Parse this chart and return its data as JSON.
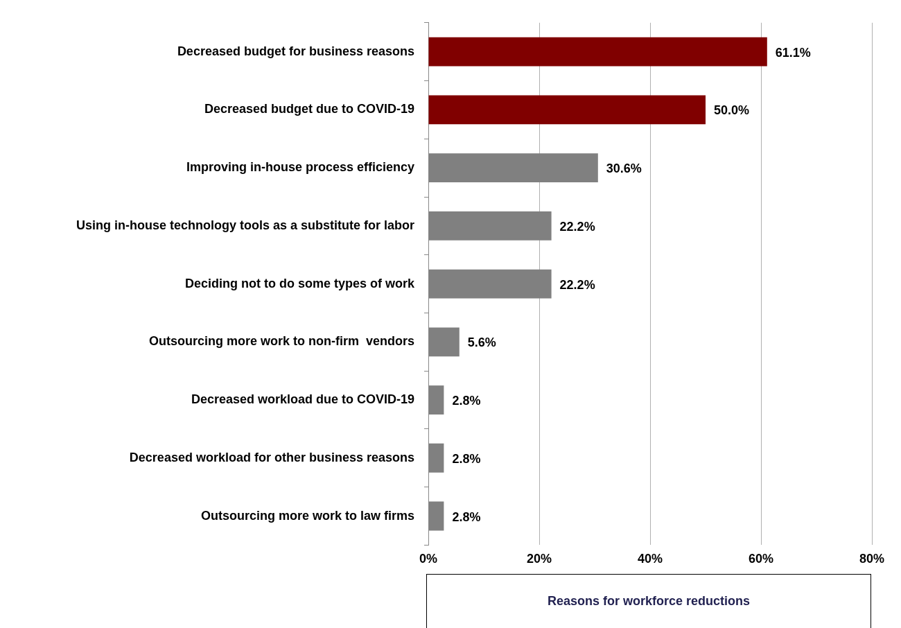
{
  "chart_data": {
    "type": "bar",
    "orientation": "horizontal",
    "xlabel": "Reasons for workforce reductions",
    "categories": [
      "Decreased budget for business reasons",
      "Decreased budget due to COVID-19",
      "Improving in-house process efficiency",
      "Using in-house technology tools as a substitute for labor",
      "Deciding not to do some types of work",
      "Outsourcing more work to non-firm  vendors",
      "Decreased workload due to COVID-19",
      "Decreased workload for other business reasons",
      "Outsourcing more work to law firms"
    ],
    "values": [
      61.1,
      50.0,
      30.6,
      22.2,
      22.2,
      5.6,
      2.8,
      2.8,
      2.8
    ],
    "value_labels": [
      "61.1%",
      "50.0%",
      "30.6%",
      "22.2%",
      "22.2%",
      "5.6%",
      "2.8%",
      "2.8%",
      "2.8%"
    ],
    "colors": [
      "#800000",
      "#800000",
      "#808080",
      "#808080",
      "#808080",
      "#808080",
      "#808080",
      "#808080",
      "#808080"
    ],
    "xlim": [
      0,
      80
    ],
    "xticks": [
      {
        "value": 0,
        "label": "0%"
      },
      {
        "value": 20,
        "label": "20%"
      },
      {
        "value": 40,
        "label": "40%"
      },
      {
        "value": 60,
        "label": "60%"
      },
      {
        "value": 80,
        "label": "80%"
      }
    ],
    "grid": "x"
  }
}
